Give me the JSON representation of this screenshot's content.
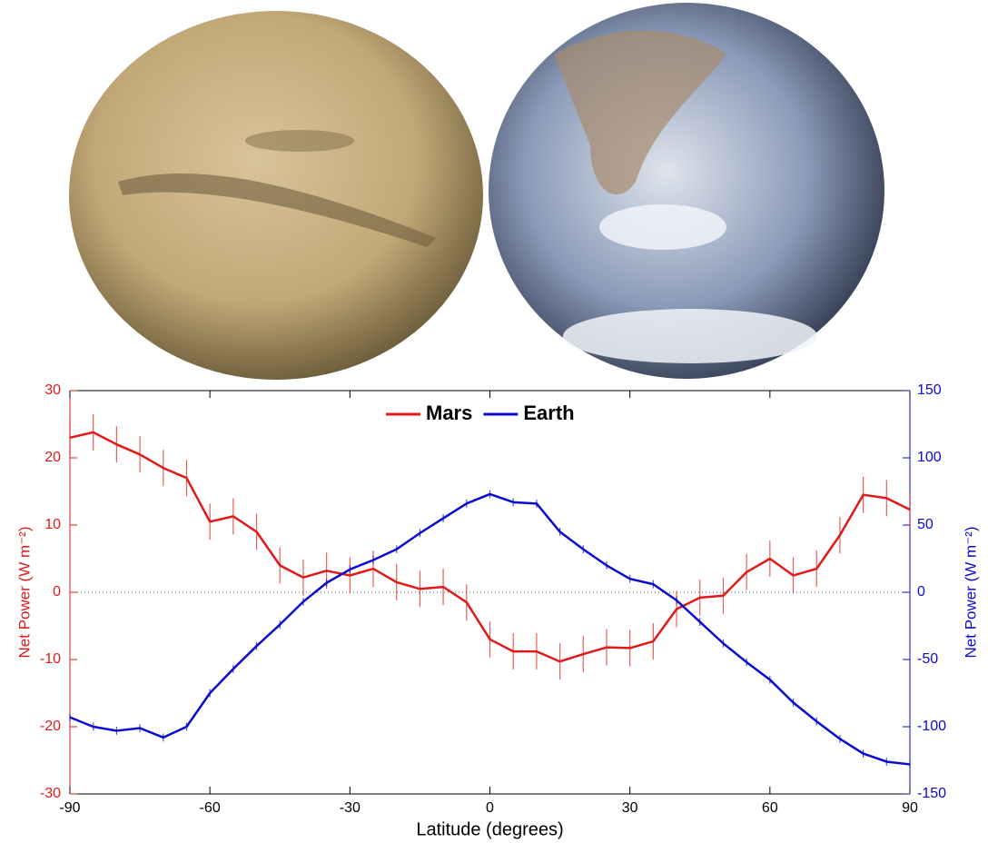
{
  "chart_data": {
    "type": "line",
    "xlabel": "Latitude (degrees)",
    "ylabel": "Net Power (W m⁻²)",
    "y2label": "Net Power (W m⁻²)",
    "x": [
      -90,
      -85,
      -80,
      -75,
      -70,
      -65,
      -60,
      -55,
      -50,
      -45,
      -40,
      -35,
      -30,
      -25,
      -20,
      -15,
      -10,
      -5,
      0,
      5,
      10,
      15,
      20,
      25,
      30,
      35,
      40,
      45,
      50,
      55,
      60,
      65,
      70,
      75,
      80,
      85,
      90
    ],
    "xlim": [
      -90,
      90
    ],
    "xticks": [
      -90,
      -60,
      -30,
      0,
      30,
      60,
      90
    ],
    "ylim": [
      -30,
      30
    ],
    "yticks": [
      -30,
      -20,
      -10,
      0,
      10,
      20,
      30
    ],
    "y2lim": [
      -150,
      150
    ],
    "y2ticks": [
      -150,
      -100,
      -50,
      0,
      50,
      100,
      150
    ],
    "legend": "top-center",
    "series": [
      {
        "name": "Mars",
        "color": "#e01a1a",
        "axis": "y",
        "values": [
          23,
          23.8,
          22,
          20.5,
          18.5,
          17,
          10.5,
          11.3,
          9,
          4,
          2.2,
          3.2,
          2.5,
          3.5,
          1.5,
          0.5,
          0.8,
          -1.5,
          -7,
          -8.8,
          -8.8,
          -10.3,
          -9.2,
          -8.2,
          -8.3,
          -7.3,
          -2.5,
          -0.8,
          -0.5,
          3,
          5,
          2.5,
          3.5,
          8.5,
          14.5,
          14,
          12.3
        ],
        "errors": [
          2.7,
          2.7,
          2.7,
          2.7,
          2.7,
          2.7,
          2.7,
          2.7,
          2.7,
          2.7,
          2.7,
          2.7,
          2.7,
          2.7,
          2.7,
          2.7,
          2.7,
          2.7,
          2.7,
          2.7,
          2.7,
          2.7,
          2.7,
          2.7,
          2.7,
          2.7,
          2.7,
          2.7,
          2.7,
          2.7,
          2.7,
          2.7,
          2.7,
          2.7,
          2.7,
          2.7,
          2.7
        ]
      },
      {
        "name": "Earth",
        "color": "#0a0ad0",
        "axis": "y2",
        "values": [
          -93,
          -100,
          -103,
          -101,
          -108,
          -100,
          -75,
          -57,
          -40,
          -24,
          -7,
          7,
          17,
          24,
          32,
          44,
          55,
          66,
          73,
          67,
          66,
          45,
          32,
          20,
          10,
          6,
          -6,
          -22,
          -38,
          -52,
          -65,
          -82,
          -96,
          -109,
          -120,
          -126,
          -128
        ],
        "errors": [
          3,
          3,
          3,
          3,
          3,
          3,
          3,
          3,
          3,
          3,
          3,
          3,
          3,
          3,
          3,
          3,
          3,
          3,
          3,
          3,
          3,
          3,
          3,
          3,
          3,
          3,
          3,
          3,
          3,
          3,
          3,
          3,
          3,
          3,
          3,
          3,
          3
        ]
      }
    ]
  }
}
